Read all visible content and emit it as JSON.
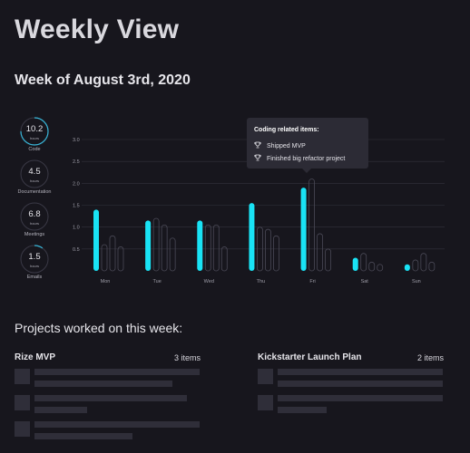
{
  "page_title": "Weekly View",
  "week_title": "Week of August 3rd, 2020",
  "rings": [
    {
      "value": "10.2",
      "unit": "hours",
      "label": "Code",
      "fraction": 0.75,
      "color": "#38b6d8"
    },
    {
      "value": "4.5",
      "unit": "hours",
      "label": "Documentation",
      "fraction": 0.0,
      "color": "#38b6d8"
    },
    {
      "value": "6.8",
      "unit": "hours",
      "label": "Meetings",
      "fraction": 0.0,
      "color": "#38b6d8"
    },
    {
      "value": "1.5",
      "unit": "hours",
      "label": "Emails",
      "fraction": 0.1,
      "color": "#38b6d8"
    }
  ],
  "tooltip": {
    "title": "Coding related items:",
    "items": [
      {
        "icon": "trophy-icon",
        "text": "Shipped MVP"
      },
      {
        "icon": "trophy-icon",
        "text": "Finished big refactor project"
      }
    ]
  },
  "chart_data": {
    "type": "bar",
    "categories": [
      "Mon",
      "Tue",
      "Wed",
      "Thu",
      "Fri",
      "Sat",
      "Sun"
    ],
    "y_ticks": [
      "0.5",
      "1.0",
      "1.5",
      "2.0",
      "2.5",
      "3.0"
    ],
    "ylim": [
      0,
      3.0
    ],
    "grid": true,
    "series": [
      {
        "values": [
          1.4,
          1.15,
          1.15,
          1.55,
          1.9,
          0.3,
          0.15
        ],
        "color": "#19e3f5"
      },
      {
        "values": [
          0.6,
          1.2,
          1.05,
          1.0,
          2.1,
          0.4,
          0.25
        ],
        "color": "#17161d"
      },
      {
        "values": [
          0.8,
          1.05,
          1.05,
          0.95,
          0.85,
          0.2,
          0.4
        ],
        "color": "#17161d"
      },
      {
        "values": [
          0.55,
          0.75,
          0.55,
          0.8,
          0.5,
          0.15,
          0.2
        ],
        "color": "#17161d"
      }
    ]
  },
  "projects": {
    "title": "Projects worked on this week:",
    "list": [
      {
        "name": "Rize MVP",
        "count": "3 items"
      },
      {
        "name": "Kickstarter Launch Plan",
        "count": "2 items"
      }
    ]
  },
  "colors": {
    "background": "#17161d",
    "accent": "#19e3f5",
    "skeleton": "#2f2e39",
    "tooltip_bg": "#2c2b35"
  }
}
